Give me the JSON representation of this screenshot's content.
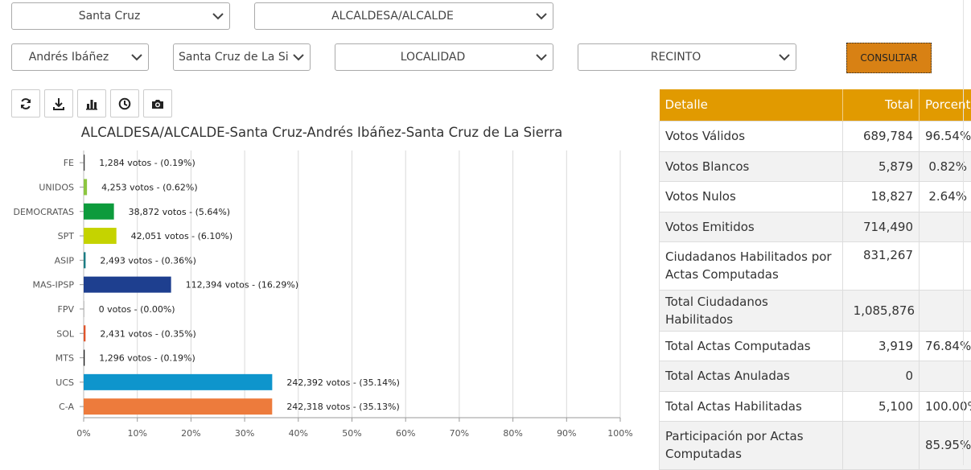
{
  "filters": {
    "departamento": "Santa Cruz",
    "cargo": "ALCALDESA/ALCALDE",
    "provincia": "Andrés Ibáñez",
    "municipio": "Santa Cruz de La Sierra",
    "localidad": "LOCALIDAD",
    "recinto": "RECINTO",
    "consultar_label": "CONSULTAR"
  },
  "toolbar": {
    "icons": [
      "refresh-icon",
      "download-icon",
      "bar-chart-icon",
      "clock-icon",
      "camera-icon"
    ]
  },
  "chart_title": "ALCALDESA/ALCALDE-Santa Cruz-Andrés Ibáñez-Santa Cruz de La Sierra",
  "chart_data": {
    "type": "bar",
    "orientation": "horizontal",
    "title": "ALCALDESA/ALCALDE-Santa Cruz-Andrés Ibáñez-Santa Cruz de La Sierra",
    "xlim": [
      0,
      100
    ],
    "x_ticks": [
      "0%",
      "10%",
      "20%",
      "30%",
      "40%",
      "50%",
      "60%",
      "70%",
      "80%",
      "90%",
      "100%"
    ],
    "grid": true,
    "legend": "none",
    "categories": [
      "FE",
      "UNIDOS",
      "DEMOCRATAS",
      "SPT",
      "ASIP",
      "MAS-IPSP",
      "FPV",
      "SOL",
      "MTS",
      "UCS",
      "C-A"
    ],
    "votes": [
      1284,
      4253,
      38872,
      42051,
      2493,
      112394,
      0,
      2431,
      1296,
      242392,
      242318
    ],
    "percent": [
      0.19,
      0.62,
      5.64,
      6.1,
      0.36,
      16.29,
      0.0,
      0.35,
      0.19,
      35.14,
      35.13
    ],
    "labels": [
      "1,284 votos - (0.19%)",
      "4,253 votos - (0.62%)",
      "38,872 votos - (5.64%)",
      "42,051 votos - (6.10%)",
      "2,493 votos - (0.36%)",
      "112,394 votos - (16.29%)",
      "0 votos - (0.00%)",
      "2,431 votos - (0.35%)",
      "1,296 votos - (0.19%)",
      "242,392 votos - (35.14%)",
      "242,318 votos - (35.13%)"
    ],
    "colors": [
      "#3c3c3c",
      "#8cc63f",
      "#0d9b3c",
      "#c5d300",
      "#1b7d84",
      "#1e3f8f",
      "#999999",
      "#e0552b",
      "#1b1b1b",
      "#0e95cc",
      "#ed7b3c"
    ]
  },
  "table": {
    "headers": [
      "Detalle",
      "Total",
      "Porcentaje"
    ],
    "rows": [
      {
        "label": "Votos Válidos",
        "total": "689,784",
        "pct": "96.54%"
      },
      {
        "label": "Votos Blancos",
        "total": "5,879",
        "pct": "0.82%"
      },
      {
        "label": "Votos Nulos",
        "total": "18,827",
        "pct": "2.64%"
      },
      {
        "label": "Votos Emitidos",
        "total": "714,490",
        "pct": ""
      },
      {
        "label": "Ciudadanos Habilitados por Actas Computadas",
        "total": "831,267",
        "pct": ""
      },
      {
        "label": "Total Ciudadanos Habilitados",
        "total": "1,085,876",
        "pct": ""
      },
      {
        "label": "Total Actas Computadas",
        "total": "3,919",
        "pct": "76.84%"
      },
      {
        "label": "Total Actas Anuladas",
        "total": "0",
        "pct": ""
      },
      {
        "label": "Total Actas Habilitadas",
        "total": "5,100",
        "pct": "100.00%"
      },
      {
        "label": "Participación por Actas Computadas",
        "total": "",
        "pct": "85.95%"
      }
    ]
  }
}
